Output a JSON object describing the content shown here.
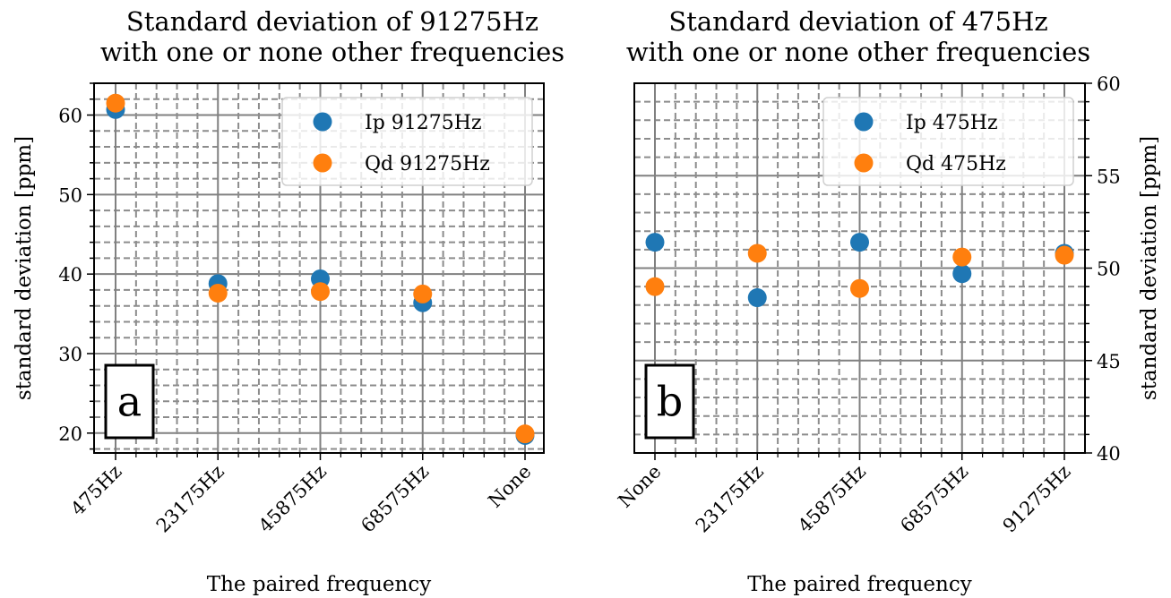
{
  "colors": {
    "ip": "#1f77b4",
    "qd": "#ff7f0e",
    "major_grid": "#808080",
    "minor_grid": "#8c8c8c"
  },
  "chart_data": [
    {
      "type": "scatter",
      "panel_label": "a",
      "title": [
        "Standard deviation of 91275Hz",
        "with one or none other frequencies"
      ],
      "xlabel": "The paired frequency",
      "ylabel": "standard deviation [ppm]",
      "y_axis_side": "left",
      "categories": [
        "475Hz",
        "23175Hz",
        "45875Hz",
        "68575Hz",
        "None"
      ],
      "ylim": [
        17.5,
        64
      ],
      "yticks": [
        20,
        30,
        40,
        50,
        60
      ],
      "grid": true,
      "legend_position": "top-right",
      "series": [
        {
          "name": "Ip 91275Hz",
          "color_key": "ip",
          "values": [
            60.7,
            38.8,
            39.4,
            36.4,
            19.7
          ]
        },
        {
          "name": "Qd 91275Hz",
          "color_key": "qd",
          "values": [
            61.5,
            37.6,
            37.8,
            37.5,
            19.9
          ]
        }
      ]
    },
    {
      "type": "scatter",
      "panel_label": "b",
      "title": [
        "Standard deviation of 475Hz",
        "with one or none other frequencies"
      ],
      "xlabel": "The paired frequency",
      "ylabel": "standard deviation [ppm]",
      "y_axis_side": "right",
      "categories": [
        "None",
        "23175Hz",
        "45875Hz",
        "68575Hz",
        "91275Hz"
      ],
      "ylim": [
        40,
        60
      ],
      "yticks": [
        40,
        45,
        50,
        55,
        60
      ],
      "grid": true,
      "legend_position": "top-right",
      "series": [
        {
          "name": "Ip 475Hz",
          "color_key": "ip",
          "values": [
            51.4,
            48.4,
            51.4,
            49.7,
            50.8
          ]
        },
        {
          "name": "Qd 475Hz",
          "color_key": "qd",
          "values": [
            49.0,
            50.8,
            48.9,
            50.6,
            50.7
          ]
        }
      ]
    }
  ]
}
